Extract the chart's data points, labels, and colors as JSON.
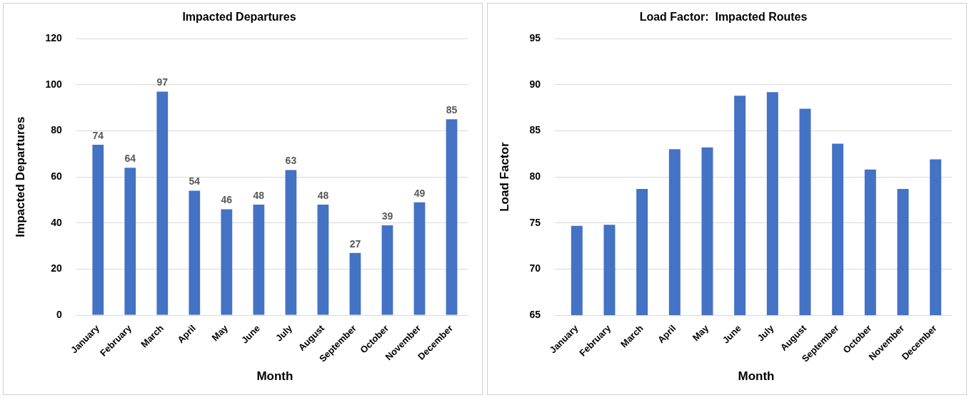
{
  "chart_data": [
    {
      "type": "bar",
      "title": "Impacted Departures",
      "xlabel": "Month",
      "ylabel": "Impacted Departures",
      "categories": [
        "January",
        "February",
        "March",
        "April",
        "May",
        "June",
        "July",
        "August",
        "September",
        "October",
        "November",
        "December"
      ],
      "values": [
        74,
        64,
        97,
        54,
        46,
        48,
        63,
        48,
        27,
        39,
        49,
        85
      ],
      "color": "#4472c4",
      "ylim": [
        0,
        120
      ],
      "yticks": [
        0,
        20,
        40,
        60,
        80,
        100,
        120
      ],
      "grid": "y",
      "data_labels": true
    },
    {
      "type": "bar",
      "title": "Load Factor:  Impacted Routes",
      "xlabel": "Month",
      "ylabel": "Load Factor",
      "categories": [
        "January",
        "February",
        "March",
        "April",
        "May",
        "June",
        "July",
        "August",
        "September",
        "October",
        "November",
        "December"
      ],
      "values": [
        74.7,
        74.8,
        78.7,
        83.0,
        83.2,
        88.8,
        89.2,
        87.4,
        83.6,
        80.8,
        78.7,
        81.9
      ],
      "color": "#4472c4",
      "ylim": [
        65,
        95
      ],
      "yticks": [
        65,
        70,
        75,
        80,
        85,
        90,
        95
      ],
      "grid": "y"
    }
  ]
}
